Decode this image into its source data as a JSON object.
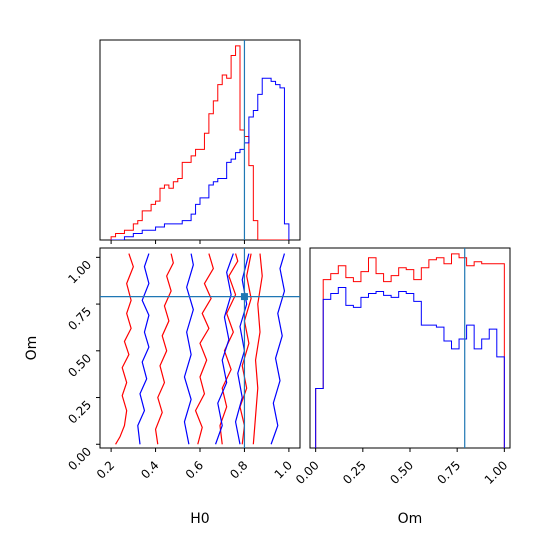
{
  "chart_data": {
    "type": "corner",
    "parameters": [
      "H0",
      "Om"
    ],
    "truth": {
      "H0": 0.8,
      "Om": 0.79
    },
    "colors": {
      "series_a": "#ff0000",
      "series_b": "#0000ff",
      "truth": "#1f77b4"
    },
    "panels": [
      {
        "id": "hist-H0",
        "type": "histogram-step",
        "xlim": [
          0.15,
          1.05
        ],
        "bin_edges": [
          0.2,
          0.22,
          0.24,
          0.26,
          0.28,
          0.3,
          0.32,
          0.34,
          0.36,
          0.38,
          0.4,
          0.42,
          0.44,
          0.46,
          0.48,
          0.5,
          0.52,
          0.54,
          0.56,
          0.58,
          0.6,
          0.62,
          0.64,
          0.66,
          0.68,
          0.7,
          0.72,
          0.74,
          0.76,
          0.78,
          0.8,
          0.82,
          0.84,
          0.86,
          0.88,
          0.9,
          0.92,
          0.94,
          0.96,
          0.98,
          1.0
        ],
        "series": [
          {
            "color_key": "series_a",
            "counts": [
              1,
              2,
              2,
              3,
              3,
              5,
              6,
              9,
              9,
              11,
              12,
              16,
              17,
              16,
              18,
              19,
              24,
              24,
              26,
              28,
              28,
              33,
              39,
              43,
              48,
              51,
              50,
              57,
              60,
              34,
              32,
              23,
              6,
              0,
              0,
              0,
              0,
              0,
              0,
              0
            ]
          },
          {
            "color_key": "series_b",
            "counts": [
              0,
              0,
              0,
              1,
              1,
              2,
              2,
              3,
              3,
              3,
              4,
              4,
              5,
              5,
              5,
              5,
              6,
              6,
              8,
              11,
              13,
              13,
              17,
              18,
              19,
              19,
              24,
              25,
              27,
              28,
              30,
              38,
              40,
              45,
              50,
              50,
              49,
              48,
              47,
              5
            ]
          }
        ]
      },
      {
        "id": "contour-H0-Om",
        "type": "contour",
        "xlim": [
          0.15,
          1.05
        ],
        "ylim": [
          -0.02,
          1.05
        ],
        "xticks": [
          "0.2",
          "0.4",
          "0.6",
          "0.8",
          "1.0"
        ],
        "yticks": [
          "0.00",
          "0.25",
          "0.50",
          "0.75",
          "1.00"
        ],
        "xlabel": "H0",
        "ylabel": "Om",
        "series": [
          {
            "color_key": "series_a",
            "lines": [
              [
                [
                  0.22,
                  0.0
                ],
                [
                  0.24,
                  0.04
                ],
                [
                  0.26,
                  0.1
                ],
                [
                  0.27,
                  0.18
                ],
                [
                  0.25,
                  0.26
                ],
                [
                  0.27,
                  0.33
                ],
                [
                  0.25,
                  0.41
                ],
                [
                  0.28,
                  0.48
                ],
                [
                  0.26,
                  0.55
                ],
                [
                  0.29,
                  0.62
                ],
                [
                  0.27,
                  0.7
                ],
                [
                  0.29,
                  0.77
                ],
                [
                  0.27,
                  0.86
                ],
                [
                  0.3,
                  0.95
                ],
                [
                  0.28,
                  1.02
                ]
              ],
              [
                [
                  0.41,
                  0.0
                ],
                [
                  0.4,
                  0.08
                ],
                [
                  0.43,
                  0.17
                ],
                [
                  0.41,
                  0.25
                ],
                [
                  0.44,
                  0.33
                ],
                [
                  0.42,
                  0.42
                ],
                [
                  0.45,
                  0.5
                ],
                [
                  0.43,
                  0.58
                ],
                [
                  0.46,
                  0.66
                ],
                [
                  0.44,
                  0.74
                ],
                [
                  0.47,
                  0.82
                ],
                [
                  0.45,
                  0.9
                ],
                [
                  0.48,
                  0.97
                ],
                [
                  0.47,
                  1.02
                ]
              ],
              [
                [
                  0.59,
                  0.0
                ],
                [
                  0.61,
                  0.09
                ],
                [
                  0.58,
                  0.18
                ],
                [
                  0.62,
                  0.27
                ],
                [
                  0.6,
                  0.36
                ],
                [
                  0.63,
                  0.45
                ],
                [
                  0.6,
                  0.54
                ],
                [
                  0.64,
                  0.62
                ],
                [
                  0.61,
                  0.7
                ],
                [
                  0.65,
                  0.78
                ],
                [
                  0.62,
                  0.86
                ],
                [
                  0.66,
                  0.94
                ],
                [
                  0.64,
                  1.02
                ]
              ],
              [
                [
                  0.7,
                  0.0
                ],
                [
                  0.69,
                  0.1
                ],
                [
                  0.72,
                  0.2
                ],
                [
                  0.7,
                  0.3
                ],
                [
                  0.74,
                  0.4
                ],
                [
                  0.71,
                  0.5
                ],
                [
                  0.75,
                  0.6
                ],
                [
                  0.72,
                  0.7
                ],
                [
                  0.76,
                  0.8
                ],
                [
                  0.73,
                  0.9
                ],
                [
                  0.77,
                  0.98
                ],
                [
                  0.76,
                  1.02
                ]
              ],
              [
                [
                  0.79,
                  0.0
                ],
                [
                  0.8,
                  0.1
                ],
                [
                  0.78,
                  0.2
                ],
                [
                  0.81,
                  0.3
                ],
                [
                  0.79,
                  0.42
                ],
                [
                  0.82,
                  0.54
                ],
                [
                  0.8,
                  0.66
                ],
                [
                  0.83,
                  0.78
                ],
                [
                  0.81,
                  0.9
                ],
                [
                  0.83,
                  1.02
                ]
              ],
              [
                [
                  0.84,
                  0.0
                ],
                [
                  0.85,
                  0.15
                ],
                [
                  0.86,
                  0.3
                ],
                [
                  0.85,
                  0.45
                ],
                [
                  0.87,
                  0.6
                ],
                [
                  0.86,
                  0.75
                ],
                [
                  0.88,
                  0.9
                ],
                [
                  0.87,
                  1.02
                ]
              ]
            ]
          },
          {
            "color_key": "series_b",
            "lines": [
              [
                [
                  0.33,
                  0.0
                ],
                [
                  0.32,
                  0.1
                ],
                [
                  0.35,
                  0.18
                ],
                [
                  0.33,
                  0.27
                ],
                [
                  0.36,
                  0.35
                ],
                [
                  0.34,
                  0.44
                ],
                [
                  0.37,
                  0.52
                ],
                [
                  0.35,
                  0.6
                ],
                [
                  0.37,
                  0.69
                ],
                [
                  0.34,
                  0.77
                ],
                [
                  0.37,
                  0.86
                ],
                [
                  0.35,
                  0.95
                ],
                [
                  0.37,
                  1.02
                ]
              ],
              [
                [
                  0.55,
                  0.0
                ],
                [
                  0.53,
                  0.12
                ],
                [
                  0.56,
                  0.24
                ],
                [
                  0.53,
                  0.36
                ],
                [
                  0.56,
                  0.48
                ],
                [
                  0.54,
                  0.6
                ],
                [
                  0.57,
                  0.72
                ],
                [
                  0.54,
                  0.84
                ],
                [
                  0.57,
                  0.96
                ],
                [
                  0.56,
                  1.02
                ]
              ],
              [
                [
                  0.67,
                  0.0
                ],
                [
                  0.7,
                  0.1
                ],
                [
                  0.68,
                  0.22
                ],
                [
                  0.72,
                  0.33
                ],
                [
                  0.7,
                  0.45
                ],
                [
                  0.73,
                  0.56
                ],
                [
                  0.71,
                  0.68
                ],
                [
                  0.74,
                  0.8
                ],
                [
                  0.72,
                  0.92
                ],
                [
                  0.75,
                  1.02
                ]
              ],
              [
                [
                  0.78,
                  0.0
                ],
                [
                  0.76,
                  0.12
                ],
                [
                  0.79,
                  0.25
                ],
                [
                  0.77,
                  0.38
                ],
                [
                  0.8,
                  0.5
                ],
                [
                  0.78,
                  0.63
                ],
                [
                  0.81,
                  0.75
                ],
                [
                  0.79,
                  0.88
                ],
                [
                  0.82,
                  1.02
                ]
              ],
              [
                [
                  0.92,
                  0.0
                ],
                [
                  0.95,
                  0.1
                ],
                [
                  0.93,
                  0.22
                ],
                [
                  0.96,
                  0.34
                ],
                [
                  0.94,
                  0.46
                ],
                [
                  0.97,
                  0.58
                ],
                [
                  0.95,
                  0.7
                ],
                [
                  0.98,
                  0.82
                ],
                [
                  0.96,
                  0.94
                ],
                [
                  0.98,
                  1.02
                ]
              ]
            ]
          }
        ]
      },
      {
        "id": "hist-Om",
        "type": "histogram-step",
        "xlim": [
          -0.03,
          1.03
        ],
        "xticks": [
          "0.00",
          "0.25",
          "0.50",
          "0.75",
          "1.00"
        ],
        "xlabel": "Om",
        "bin_edges": [
          0.0,
          0.04,
          0.08,
          0.12,
          0.16,
          0.2,
          0.24,
          0.28,
          0.32,
          0.36,
          0.4,
          0.44,
          0.48,
          0.52,
          0.56,
          0.6,
          0.64,
          0.68,
          0.72,
          0.76,
          0.8,
          0.84,
          0.88,
          0.92,
          0.96,
          1.0
        ],
        "series": [
          {
            "color_key": "series_a",
            "counts": [
              30,
              85,
              88,
              92,
              86,
              84,
              89,
              96,
              88,
              84,
              87,
              91,
              90,
              85,
              91,
              95,
              96,
              93,
              98,
              96,
              92,
              94,
              93,
              93,
              93
            ]
          },
          {
            "color_key": "series_b",
            "counts": [
              30,
              75,
              78,
              81,
              72,
              71,
              76,
              78,
              79,
              77,
              76,
              79,
              78,
              74,
              62,
              62,
              61,
              54,
              50,
              55,
              62,
              50,
              55,
              60,
              46
            ]
          }
        ]
      }
    ]
  }
}
